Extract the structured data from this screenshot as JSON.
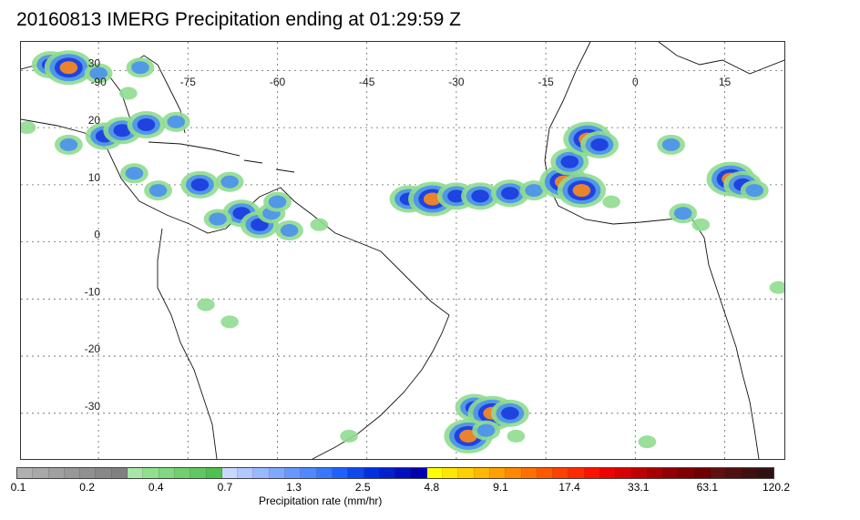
{
  "title": "20160813 IMERG Precipitation ending at 01:29:59 Z",
  "map": {
    "lon_range": [
      -103,
      25
    ],
    "lat_range": [
      -38,
      35
    ],
    "lon_ticks": [
      -90,
      -75,
      -60,
      -45,
      -30,
      -15,
      0,
      15
    ],
    "lon_tick_labels": [
      "-90",
      "-75",
      "-60",
      "-45",
      "-30",
      "-15",
      "0",
      "15"
    ],
    "lat_ticks": [
      30,
      20,
      10,
      0,
      -10,
      -20,
      -30
    ],
    "lat_tick_labels": [
      "30",
      "20",
      "10",
      "0",
      "-10",
      "-20",
      "-30"
    ],
    "grid": "dotted",
    "coastline_color": "#000000",
    "precip_cells": [
      {
        "lon": -98,
        "lat": 31,
        "intensity": 3
      },
      {
        "lon": -95,
        "lat": 30.5,
        "intensity": 4
      },
      {
        "lon": -90,
        "lat": 29.5,
        "intensity": 2
      },
      {
        "lon": -83,
        "lat": 30.5,
        "intensity": 2
      },
      {
        "lon": -89,
        "lat": 18.5,
        "intensity": 3
      },
      {
        "lon": -86,
        "lat": 19.5,
        "intensity": 3
      },
      {
        "lon": -82,
        "lat": 20.5,
        "intensity": 3
      },
      {
        "lon": -77,
        "lat": 21,
        "intensity": 2
      },
      {
        "lon": -95,
        "lat": 17,
        "intensity": 2
      },
      {
        "lon": -84,
        "lat": 12,
        "intensity": 2
      },
      {
        "lon": -80,
        "lat": 9,
        "intensity": 2
      },
      {
        "lon": -68,
        "lat": 10.5,
        "intensity": 2
      },
      {
        "lon": -73,
        "lat": 10,
        "intensity": 3
      },
      {
        "lon": -66,
        "lat": 5,
        "intensity": 3
      },
      {
        "lon": -63,
        "lat": 3,
        "intensity": 3
      },
      {
        "lon": -61,
        "lat": 5,
        "intensity": 2
      },
      {
        "lon": -70,
        "lat": 4,
        "intensity": 2
      },
      {
        "lon": -58,
        "lat": 2,
        "intensity": 2
      },
      {
        "lon": -53,
        "lat": 3,
        "intensity": 1
      },
      {
        "lon": -60,
        "lat": 7,
        "intensity": 2
      },
      {
        "lon": -38,
        "lat": 7.5,
        "intensity": 3
      },
      {
        "lon": -34,
        "lat": 7.5,
        "intensity": 4
      },
      {
        "lon": -30,
        "lat": 8,
        "intensity": 3
      },
      {
        "lon": -26,
        "lat": 8,
        "intensity": 3
      },
      {
        "lon": -21,
        "lat": 8.5,
        "intensity": 3
      },
      {
        "lon": -17,
        "lat": 9,
        "intensity": 2
      },
      {
        "lon": -12,
        "lat": 10.5,
        "intensity": 4
      },
      {
        "lon": -9,
        "lat": 9,
        "intensity": 4
      },
      {
        "lon": -11,
        "lat": 14,
        "intensity": 3
      },
      {
        "lon": -8,
        "lat": 18,
        "intensity": 4
      },
      {
        "lon": -6,
        "lat": 17,
        "intensity": 3
      },
      {
        "lon": 6,
        "lat": 17,
        "intensity": 2
      },
      {
        "lon": 8,
        "lat": 5,
        "intensity": 2
      },
      {
        "lon": 16,
        "lat": 11,
        "intensity": 4
      },
      {
        "lon": 18,
        "lat": 10,
        "intensity": 3
      },
      {
        "lon": 20,
        "lat": 9,
        "intensity": 2
      },
      {
        "lon": 24,
        "lat": -8,
        "intensity": 1
      },
      {
        "lon": -27,
        "lat": -29,
        "intensity": 3
      },
      {
        "lon": -24,
        "lat": -30,
        "intensity": 4
      },
      {
        "lon": -21,
        "lat": -30,
        "intensity": 3
      },
      {
        "lon": -28,
        "lat": -34,
        "intensity": 4
      },
      {
        "lon": -25,
        "lat": -33,
        "intensity": 2
      },
      {
        "lon": -72,
        "lat": -11,
        "intensity": 1
      },
      {
        "lon": -68,
        "lat": -14,
        "intensity": 1
      },
      {
        "lon": -4,
        "lat": 7,
        "intensity": 1
      },
      {
        "lon": 11,
        "lat": 3,
        "intensity": 1
      },
      {
        "lon": -20,
        "lat": -34,
        "intensity": 1
      },
      {
        "lon": 2,
        "lat": -35,
        "intensity": 1
      },
      {
        "lon": -48,
        "lat": -34,
        "intensity": 1
      },
      {
        "lon": -85,
        "lat": 26,
        "intensity": 1
      },
      {
        "lon": -102,
        "lat": 20,
        "intensity": 1
      }
    ],
    "intensity_colors": [
      "#8fdc8f",
      "#4a90f0",
      "#1a3ae0",
      "#ff8c1a",
      "#ee2020"
    ]
  },
  "colorbar": {
    "colors": [
      "#b0b0b0",
      "#a8a8a8",
      "#a0a0a0",
      "#989898",
      "#909090",
      "#888888",
      "#808080",
      "#a8e6a8",
      "#90e090",
      "#80d880",
      "#70d070",
      "#60c860",
      "#50c050",
      "#c8d8ff",
      "#b0c8ff",
      "#98b8ff",
      "#80a8ff",
      "#6898ff",
      "#5088ff",
      "#3878ff",
      "#2060ff",
      "#1048f0",
      "#0030e0",
      "#0020d0",
      "#0010c0",
      "#0000b0",
      "#ffff00",
      "#ffe800",
      "#ffd000",
      "#ffb800",
      "#ffa000",
      "#ff8800",
      "#ff7000",
      "#ff5800",
      "#ff4000",
      "#ff2800",
      "#ff1000",
      "#f00000",
      "#d80000",
      "#c00000",
      "#a80000",
      "#900000",
      "#800000",
      "#700000",
      "#601010",
      "#501010",
      "#401010",
      "#301010"
    ],
    "tick_labels": [
      "0.1",
      "0.2",
      "0.4",
      "0.7",
      "1.3",
      "2.5",
      "4.8",
      "9.1",
      "17.4",
      "33.1",
      "63.1",
      "120.2"
    ],
    "label": "Precipitation rate (mm/hr)"
  }
}
